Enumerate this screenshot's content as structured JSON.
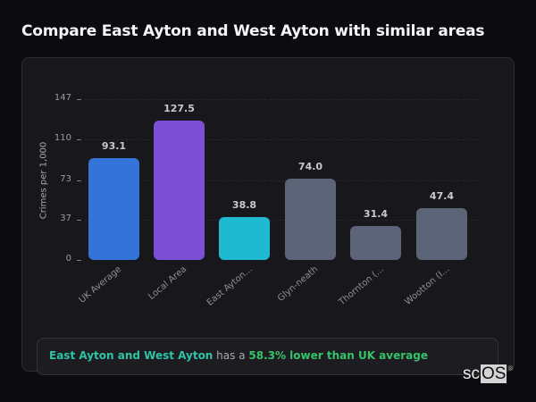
{
  "header": {
    "title": "Compare East Ayton and West Ayton with similar areas"
  },
  "chart_data": {
    "type": "bar",
    "title": "Compare East Ayton and West Ayton with similar areas",
    "xlabel": "",
    "ylabel": "Crimes per 1,000",
    "ylim": [
      0,
      147
    ],
    "yticks": [
      0,
      37,
      73,
      110,
      147
    ],
    "grid": true,
    "legend": null,
    "categories": [
      "UK Average",
      "Local Area",
      "East Ayton...",
      "Glyn-neath",
      "Thornton (...",
      "Wootton (I..."
    ],
    "values": [
      93.1,
      127.5,
      38.8,
      74.0,
      31.4,
      47.4
    ],
    "value_labels": [
      "93.1",
      "127.5",
      "38.8",
      "74.0",
      "31.4",
      "47.4"
    ],
    "colors": [
      "#3474d9",
      "#7b4fd6",
      "#1fb9d2",
      "#5c6577",
      "#5c6577",
      "#5c6577"
    ]
  },
  "summary": {
    "area": "East Ayton and West Ayton",
    "middle": " has a ",
    "stat": "58.3% lower than UK average"
  },
  "branding": {
    "logo_sc": "sc",
    "logo_os": "OS",
    "registered": "®"
  }
}
